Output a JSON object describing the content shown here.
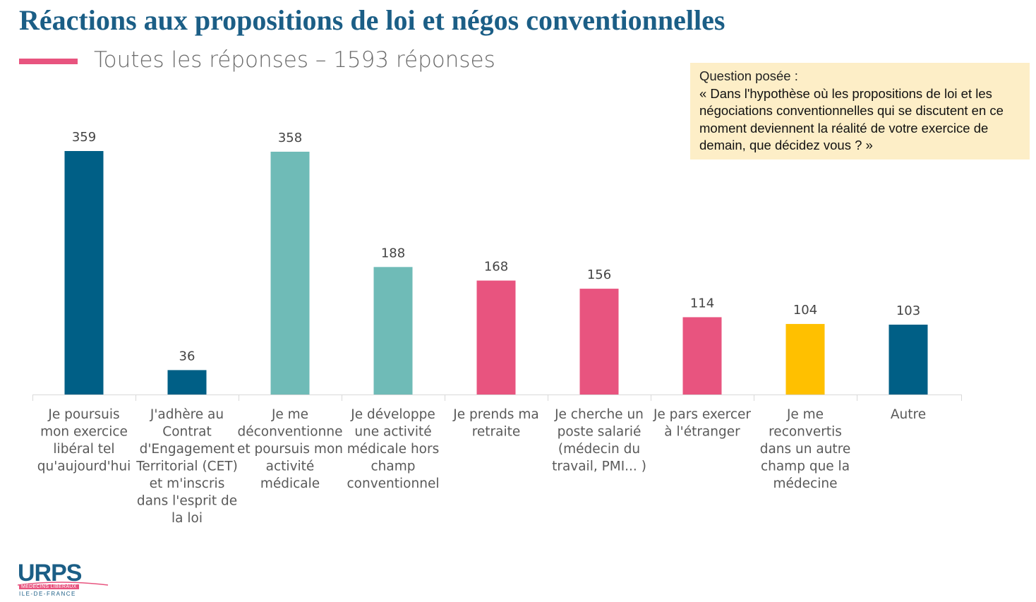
{
  "title": "Réactions aux propositions de loi et négos conventionnelles",
  "legend": {
    "label": "Toutes les réponses  – 1593 réponses",
    "color": "#e8547f"
  },
  "question_box": {
    "heading": "Question posée :",
    "text": "« Dans l'hypothèse où les propositions de loi et les négociations conventionnelles qui se discutent en ce moment deviennent la réalité de votre exercice de demain, que décidez vous ? »"
  },
  "logo": {
    "main": "URPS",
    "line1": "MÉDECINS LIBÉRAUX",
    "line2": "ILE-DE-FRANCE"
  },
  "chart_data": {
    "type": "bar",
    "title": "Réactions aux propositions de loi et négos conventionnelles",
    "xlabel": "",
    "ylabel": "",
    "ylim": [
      0,
      359
    ],
    "grid": false,
    "total_responses": 1593,
    "categories": [
      [
        "Je poursuis",
        "mon exercice",
        "libéral tel",
        "qu'aujourd'hui"
      ],
      [
        "J'adhère au",
        "Contrat",
        "d'Engagement",
        "Territorial (CET)",
        "et m'inscris",
        "dans l'esprit de",
        "la loi"
      ],
      [
        "Je me",
        "déconventionne",
        "et poursuis mon",
        "activité",
        "médicale"
      ],
      [
        "Je développe",
        "une activité",
        "médicale hors",
        "champ",
        "conventionnel"
      ],
      [
        "Je prends ma",
        "retraite"
      ],
      [
        "Je cherche un",
        "poste salarié",
        "(médecin du",
        "travail, PMI... )"
      ],
      [
        "Je pars exercer",
        "à l'étranger"
      ],
      [
        "Je me",
        "reconvertis",
        "dans un autre",
        "champ que la",
        "médecine"
      ],
      [
        "Autre"
      ]
    ],
    "values": [
      359,
      36,
      358,
      188,
      168,
      156,
      114,
      104,
      103
    ],
    "colors": [
      "#005f86",
      "#005f86",
      "#6fbbb7",
      "#6fbbb7",
      "#e8547f",
      "#e8547f",
      "#e8547f",
      "#ffc000",
      "#005f86"
    ]
  }
}
